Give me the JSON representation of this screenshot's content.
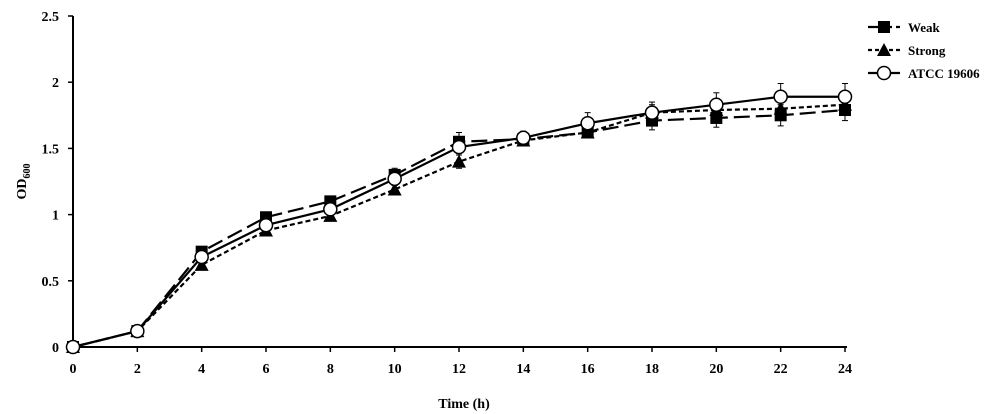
{
  "chart_data": {
    "type": "line",
    "title": "",
    "xlabel": "Time (h)",
    "ylabel": "OD",
    "ylabel_sub": "600",
    "xlim": [
      0,
      24
    ],
    "ylim": [
      0,
      2.5
    ],
    "x_ticks": [
      0,
      2,
      4,
      6,
      8,
      10,
      12,
      14,
      16,
      18,
      20,
      22,
      24
    ],
    "y_ticks": [
      0,
      0.5,
      1,
      1.5,
      2,
      2.5
    ],
    "y_tick_labels": [
      "0",
      "0.5",
      "1",
      "1.5",
      "2",
      "2.5"
    ],
    "grid": false,
    "legend_position": "top-right",
    "x": [
      0,
      2,
      4,
      6,
      8,
      10,
      12,
      14,
      16,
      18,
      20,
      22,
      24
    ],
    "series": [
      {
        "name": "Weak",
        "marker": "square",
        "line_style": "long-dash",
        "values": [
          0,
          0.12,
          0.72,
          0.98,
          1.1,
          1.3,
          1.55,
          1.57,
          1.62,
          1.71,
          1.73,
          1.75,
          1.79
        ],
        "errors": [
          0,
          0.01,
          0.03,
          0.03,
          0.03,
          0.05,
          0.07,
          0.04,
          0.04,
          0.07,
          0.07,
          0.08,
          0.08
        ]
      },
      {
        "name": "Strong",
        "marker": "triangle",
        "line_style": "short-dash",
        "values": [
          0,
          0.12,
          0.62,
          0.88,
          0.99,
          1.19,
          1.4,
          1.56,
          1.62,
          1.77,
          1.79,
          1.8,
          1.83
        ],
        "errors": [
          0,
          0.01,
          0.03,
          0.03,
          0.03,
          0.04,
          0.05,
          0.04,
          0.04,
          0.06,
          0.06,
          0.07,
          0.07
        ]
      },
      {
        "name": "ATCC 19606",
        "marker": "circle-open",
        "line_style": "solid",
        "values": [
          0,
          0.12,
          0.68,
          0.92,
          1.04,
          1.27,
          1.51,
          1.58,
          1.69,
          1.77,
          1.83,
          1.89,
          1.89
        ],
        "errors": [
          0,
          0.01,
          0.03,
          0.03,
          0.03,
          0.05,
          0.06,
          0.05,
          0.08,
          0.08,
          0.09,
          0.1,
          0.1
        ]
      }
    ]
  }
}
